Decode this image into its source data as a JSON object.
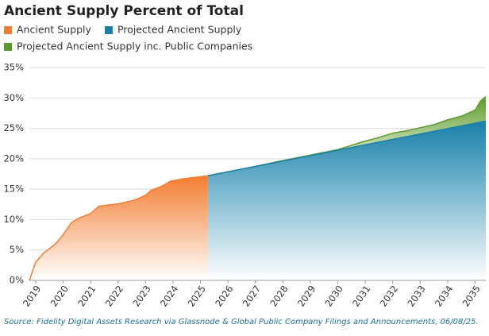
{
  "chart_data": {
    "type": "area",
    "title": "Ancient Supply Percent of Total",
    "source": "Source: Fidelity Digital Assets Research via Glassnode & Global Public Company Filings and Announcements, 06/08/25.",
    "xlim": [
      2018.77,
      2035.39
    ],
    "xticks": [
      2019,
      2020,
      2021,
      2022,
      2023,
      2024,
      2025,
      2026,
      2027,
      2028,
      2029,
      2030,
      2031,
      2032,
      2033,
      2034,
      2035
    ],
    "ylim": [
      0,
      35
    ],
    "yticks": [
      {
        "value": 0,
        "label": "0%"
      },
      {
        "value": 5,
        "label": "5%"
      },
      {
        "value": 10,
        "label": "10%"
      },
      {
        "value": 15,
        "label": "15%"
      },
      {
        "value": 20,
        "label": "20%"
      },
      {
        "value": 25,
        "label": "25%"
      },
      {
        "value": 30,
        "label": "30%"
      },
      {
        "value": 35,
        "label": "35%"
      }
    ],
    "grid": true,
    "series": [
      {
        "name": "Ancient Supply",
        "color": "#f47c30",
        "x": [
          2018.77,
          2019.0,
          2019.29,
          2019.72,
          2020.0,
          2020.3,
          2020.6,
          2021.0,
          2021.3,
          2022.03,
          2022.6,
          2023.0,
          2023.2,
          2023.6,
          2023.9,
          2024.35,
          2024.9,
          2025.27
        ],
        "values": [
          0,
          3.0,
          4.5,
          6.0,
          7.5,
          9.5,
          10.3,
          11.0,
          12.2,
          12.6,
          13.2,
          14.0,
          14.8,
          15.5,
          16.3,
          16.7,
          17.0,
          17.2
        ]
      },
      {
        "name": "Projected Ancient Supply",
        "color": "#1a7fa8",
        "x": [
          2025.27,
          2035.39
        ],
        "values": [
          17.2,
          26.2
        ]
      },
      {
        "name": "Projected Ancient Supply inc. Public Companies",
        "color": "#5c9a2a",
        "x": [
          2025.27,
          2026,
          2027,
          2028,
          2029,
          2030,
          2030.5,
          2031,
          2031.5,
          2032,
          2032.5,
          2033,
          2033.5,
          2034,
          2034.5,
          2035,
          2035.2,
          2035.39
        ],
        "values": [
          17.2,
          17.85,
          18.74,
          19.7,
          20.6,
          21.5,
          22.2,
          22.9,
          23.5,
          24.2,
          24.6,
          25.1,
          25.6,
          26.4,
          27.0,
          28.0,
          29.5,
          30.2
        ]
      }
    ]
  }
}
